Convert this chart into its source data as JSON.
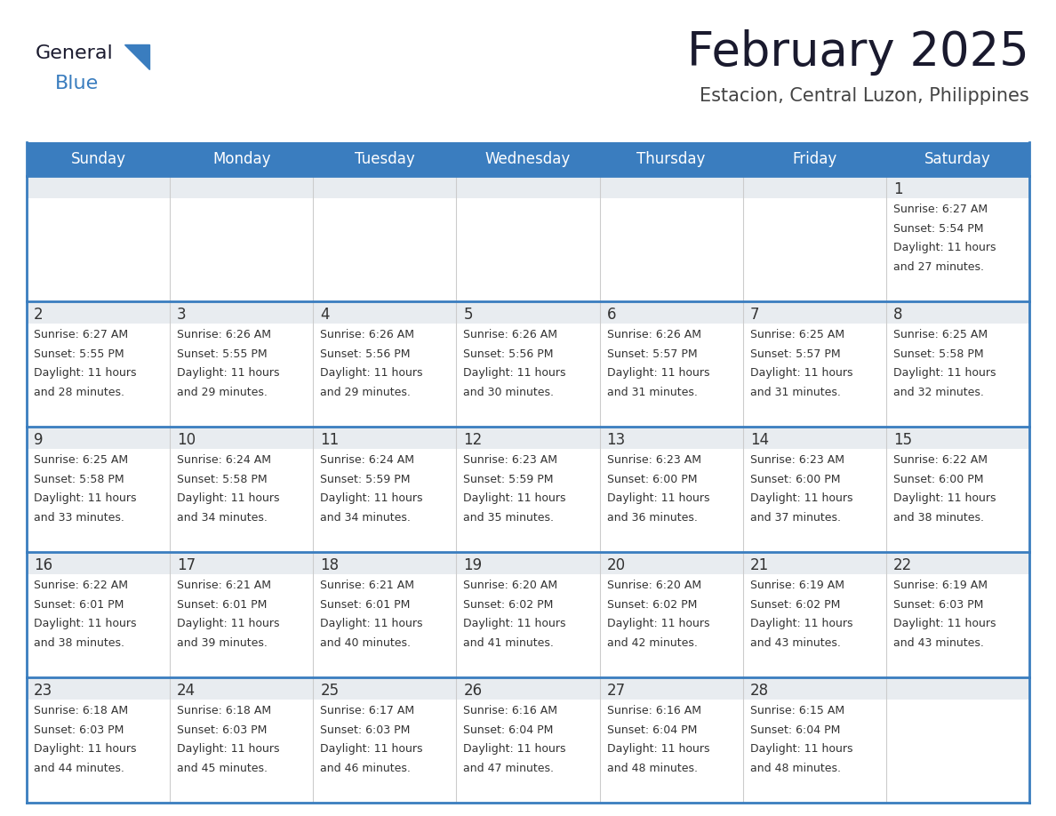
{
  "title": "February 2025",
  "subtitle": "Estacion, Central Luzon, Philippines",
  "header_color": "#3a7dbf",
  "header_text_color": "#ffffff",
  "row_top_bg": "#e8ecf0",
  "cell_bg_color": "#ffffff",
  "border_color": "#3a7dbf",
  "grid_color": "#cccccc",
  "text_color": "#333333",
  "day_names": [
    "Sunday",
    "Monday",
    "Tuesday",
    "Wednesday",
    "Thursday",
    "Friday",
    "Saturday"
  ],
  "title_fontsize": 38,
  "subtitle_fontsize": 15,
  "header_fontsize": 12,
  "day_num_fontsize": 12,
  "cell_fontsize": 9,
  "calendar": [
    [
      {
        "day": 0
      },
      {
        "day": 0
      },
      {
        "day": 0
      },
      {
        "day": 0
      },
      {
        "day": 0
      },
      {
        "day": 0
      },
      {
        "day": 1,
        "sunrise": "6:27 AM",
        "sunset": "5:54 PM",
        "daylight": "11 hours",
        "daylight2": "and 27 minutes."
      }
    ],
    [
      {
        "day": 2,
        "sunrise": "6:27 AM",
        "sunset": "5:55 PM",
        "daylight": "11 hours",
        "daylight2": "and 28 minutes."
      },
      {
        "day": 3,
        "sunrise": "6:26 AM",
        "sunset": "5:55 PM",
        "daylight": "11 hours",
        "daylight2": "and 29 minutes."
      },
      {
        "day": 4,
        "sunrise": "6:26 AM",
        "sunset": "5:56 PM",
        "daylight": "11 hours",
        "daylight2": "and 29 minutes."
      },
      {
        "day": 5,
        "sunrise": "6:26 AM",
        "sunset": "5:56 PM",
        "daylight": "11 hours",
        "daylight2": "and 30 minutes."
      },
      {
        "day": 6,
        "sunrise": "6:26 AM",
        "sunset": "5:57 PM",
        "daylight": "11 hours",
        "daylight2": "and 31 minutes."
      },
      {
        "day": 7,
        "sunrise": "6:25 AM",
        "sunset": "5:57 PM",
        "daylight": "11 hours",
        "daylight2": "and 31 minutes."
      },
      {
        "day": 8,
        "sunrise": "6:25 AM",
        "sunset": "5:58 PM",
        "daylight": "11 hours",
        "daylight2": "and 32 minutes."
      }
    ],
    [
      {
        "day": 9,
        "sunrise": "6:25 AM",
        "sunset": "5:58 PM",
        "daylight": "11 hours",
        "daylight2": "and 33 minutes."
      },
      {
        "day": 10,
        "sunrise": "6:24 AM",
        "sunset": "5:58 PM",
        "daylight": "11 hours",
        "daylight2": "and 34 minutes."
      },
      {
        "day": 11,
        "sunrise": "6:24 AM",
        "sunset": "5:59 PM",
        "daylight": "11 hours",
        "daylight2": "and 34 minutes."
      },
      {
        "day": 12,
        "sunrise": "6:23 AM",
        "sunset": "5:59 PM",
        "daylight": "11 hours",
        "daylight2": "and 35 minutes."
      },
      {
        "day": 13,
        "sunrise": "6:23 AM",
        "sunset": "6:00 PM",
        "daylight": "11 hours",
        "daylight2": "and 36 minutes."
      },
      {
        "day": 14,
        "sunrise": "6:23 AM",
        "sunset": "6:00 PM",
        "daylight": "11 hours",
        "daylight2": "and 37 minutes."
      },
      {
        "day": 15,
        "sunrise": "6:22 AM",
        "sunset": "6:00 PM",
        "daylight": "11 hours",
        "daylight2": "and 38 minutes."
      }
    ],
    [
      {
        "day": 16,
        "sunrise": "6:22 AM",
        "sunset": "6:01 PM",
        "daylight": "11 hours",
        "daylight2": "and 38 minutes."
      },
      {
        "day": 17,
        "sunrise": "6:21 AM",
        "sunset": "6:01 PM",
        "daylight": "11 hours",
        "daylight2": "and 39 minutes."
      },
      {
        "day": 18,
        "sunrise": "6:21 AM",
        "sunset": "6:01 PM",
        "daylight": "11 hours",
        "daylight2": "and 40 minutes."
      },
      {
        "day": 19,
        "sunrise": "6:20 AM",
        "sunset": "6:02 PM",
        "daylight": "11 hours",
        "daylight2": "and 41 minutes."
      },
      {
        "day": 20,
        "sunrise": "6:20 AM",
        "sunset": "6:02 PM",
        "daylight": "11 hours",
        "daylight2": "and 42 minutes."
      },
      {
        "day": 21,
        "sunrise": "6:19 AM",
        "sunset": "6:02 PM",
        "daylight": "11 hours",
        "daylight2": "and 43 minutes."
      },
      {
        "day": 22,
        "sunrise": "6:19 AM",
        "sunset": "6:03 PM",
        "daylight": "11 hours",
        "daylight2": "and 43 minutes."
      }
    ],
    [
      {
        "day": 23,
        "sunrise": "6:18 AM",
        "sunset": "6:03 PM",
        "daylight": "11 hours",
        "daylight2": "and 44 minutes."
      },
      {
        "day": 24,
        "sunrise": "6:18 AM",
        "sunset": "6:03 PM",
        "daylight": "11 hours",
        "daylight2": "and 45 minutes."
      },
      {
        "day": 25,
        "sunrise": "6:17 AM",
        "sunset": "6:03 PM",
        "daylight": "11 hours",
        "daylight2": "and 46 minutes."
      },
      {
        "day": 26,
        "sunrise": "6:16 AM",
        "sunset": "6:04 PM",
        "daylight": "11 hours",
        "daylight2": "and 47 minutes."
      },
      {
        "day": 27,
        "sunrise": "6:16 AM",
        "sunset": "6:04 PM",
        "daylight": "11 hours",
        "daylight2": "and 48 minutes."
      },
      {
        "day": 28,
        "sunrise": "6:15 AM",
        "sunset": "6:04 PM",
        "daylight": "11 hours",
        "daylight2": "and 48 minutes."
      },
      {
        "day": 0
      }
    ]
  ]
}
